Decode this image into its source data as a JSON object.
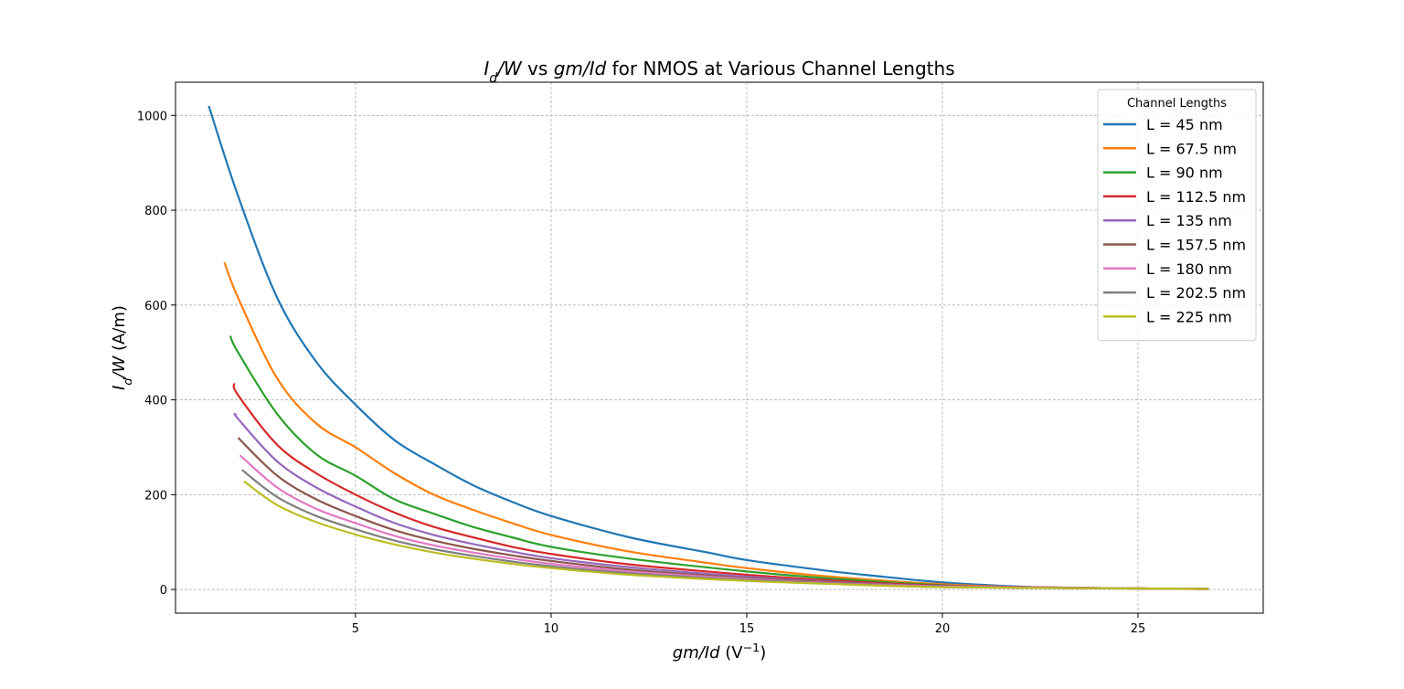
{
  "chart_data": {
    "type": "line",
    "title_parts": [
      {
        "text": "I",
        "italic": true
      },
      {
        "text": "d",
        "italic": true,
        "sub": true
      },
      {
        "text": "/W",
        "italic": true
      },
      {
        "text": " vs ",
        "italic": false
      },
      {
        "text": "gm/Id",
        "italic": true
      },
      {
        "text": " for NMOS at Various Channel Lengths",
        "italic": false
      }
    ],
    "xlabel_parts": [
      {
        "text": "gm/Id",
        "italic": true
      },
      {
        "text": " (V",
        "italic": false
      },
      {
        "text": "−1",
        "italic": false,
        "sup": true
      },
      {
        "text": ")",
        "italic": false
      }
    ],
    "ylabel_parts": [
      {
        "text": "I",
        "italic": true
      },
      {
        "text": "d",
        "italic": true,
        "sub": true
      },
      {
        "text": "/W",
        "italic": true
      },
      {
        "text": " (A/m)",
        "italic": false
      }
    ],
    "xlim": [
      0.4,
      28.2
    ],
    "ylim": [
      -50,
      1070
    ],
    "xticks": [
      5,
      10,
      15,
      20,
      25
    ],
    "xtick_labels": [
      "5",
      "10",
      "15",
      "20",
      "25"
    ],
    "yticks": [
      0,
      200,
      400,
      600,
      800,
      1000
    ],
    "ytick_labels": [
      "0",
      "200",
      "400",
      "600",
      "800",
      "1000"
    ],
    "grid": true,
    "legend_title": "Channel Lengths",
    "legend_position": "top-right",
    "series": [
      {
        "name": "L = 45 nm",
        "color": "#1f77b4",
        "points": [
          [
            1.25,
            1020
          ],
          [
            2,
            830
          ],
          [
            3,
            615
          ],
          [
            4,
            480
          ],
          [
            5,
            390
          ],
          [
            6,
            315
          ],
          [
            7,
            265
          ],
          [
            8,
            220
          ],
          [
            9,
            185
          ],
          [
            10,
            155
          ],
          [
            12,
            110
          ],
          [
            14,
            78
          ],
          [
            15,
            62
          ],
          [
            17,
            40
          ],
          [
            18,
            31
          ],
          [
            20,
            15
          ],
          [
            22,
            6
          ],
          [
            23,
            4
          ],
          [
            25,
            2
          ],
          [
            26.8,
            1
          ]
        ]
      },
      {
        "name": "L = 67.5 nm",
        "color": "#ff7f0e",
        "points": [
          [
            1.65,
            690
          ],
          [
            2,
            615
          ],
          [
            3,
            445
          ],
          [
            4,
            350
          ],
          [
            5,
            300
          ],
          [
            6,
            245
          ],
          [
            7,
            200
          ],
          [
            8,
            168
          ],
          [
            9,
            140
          ],
          [
            10,
            115
          ],
          [
            12,
            80
          ],
          [
            14,
            56
          ],
          [
            15,
            45
          ],
          [
            17,
            28
          ],
          [
            20,
            11
          ],
          [
            22,
            5
          ],
          [
            25,
            2
          ],
          [
            26.8,
            1
          ]
        ]
      },
      {
        "name": "L = 90 nm",
        "color": "#2ca02c",
        "points": [
          [
            1.8,
            535
          ],
          [
            2,
            500
          ],
          [
            3,
            370
          ],
          [
            4,
            285
          ],
          [
            5,
            240
          ],
          [
            6,
            190
          ],
          [
            7,
            160
          ],
          [
            8,
            132
          ],
          [
            9,
            110
          ],
          [
            10,
            90
          ],
          [
            12,
            65
          ],
          [
            15,
            38
          ],
          [
            17,
            24
          ],
          [
            20,
            9
          ],
          [
            22,
            4
          ],
          [
            25,
            2
          ],
          [
            26.8,
            1
          ]
        ]
      },
      {
        "name": "L = 112.5 nm",
        "color": "#d62728",
        "points": [
          [
            1.9,
            435
          ],
          [
            2,
            410
          ],
          [
            3,
            305
          ],
          [
            4,
            245
          ],
          [
            5,
            200
          ],
          [
            6,
            162
          ],
          [
            7,
            132
          ],
          [
            8,
            110
          ],
          [
            9,
            90
          ],
          [
            10,
            75
          ],
          [
            12,
            53
          ],
          [
            15,
            31
          ],
          [
            17,
            20
          ],
          [
            20,
            8
          ],
          [
            25,
            2
          ],
          [
            26.8,
            1
          ]
        ]
      },
      {
        "name": "L = 135 nm",
        "color": "#9467bd",
        "points": [
          [
            1.95,
            370
          ],
          [
            2,
            360
          ],
          [
            3,
            270
          ],
          [
            4,
            215
          ],
          [
            5,
            175
          ],
          [
            6,
            140
          ],
          [
            7,
            115
          ],
          [
            8,
            96
          ],
          [
            9,
            80
          ],
          [
            10,
            66
          ],
          [
            12,
            47
          ],
          [
            15,
            27
          ],
          [
            17,
            17
          ],
          [
            20,
            7
          ],
          [
            25,
            2
          ],
          [
            26.8,
            1
          ]
        ]
      },
      {
        "name": "L = 157.5 nm",
        "color": "#8c564b",
        "points": [
          [
            2,
            320
          ],
          [
            3,
            240
          ],
          [
            4,
            190
          ],
          [
            5,
            155
          ],
          [
            6,
            125
          ],
          [
            7,
            103
          ],
          [
            8,
            86
          ],
          [
            9,
            72
          ],
          [
            10,
            60
          ],
          [
            12,
            42
          ],
          [
            15,
            24
          ],
          [
            17,
            16
          ],
          [
            20,
            6
          ],
          [
            25,
            2
          ],
          [
            26.8,
            1
          ]
        ]
      },
      {
        "name": "L = 180 nm",
        "color": "#e377c2",
        "points": [
          [
            2.05,
            283
          ],
          [
            3,
            215
          ],
          [
            4,
            170
          ],
          [
            5,
            140
          ],
          [
            6,
            113
          ],
          [
            7,
            93
          ],
          [
            8,
            78
          ],
          [
            9,
            65
          ],
          [
            10,
            54
          ],
          [
            12,
            38
          ],
          [
            15,
            22
          ],
          [
            17,
            14
          ],
          [
            20,
            6
          ],
          [
            25,
            2
          ],
          [
            26.8,
            1
          ]
        ]
      },
      {
        "name": "L = 202.5 nm",
        "color": "#7f7f7f",
        "points": [
          [
            2.1,
            252
          ],
          [
            3,
            195
          ],
          [
            4,
            155
          ],
          [
            5,
            127
          ],
          [
            6,
            103
          ],
          [
            7,
            85
          ],
          [
            8,
            71
          ],
          [
            9,
            59
          ],
          [
            10,
            49
          ],
          [
            12,
            34
          ],
          [
            15,
            20
          ],
          [
            17,
            13
          ],
          [
            20,
            5
          ],
          [
            25,
            2
          ],
          [
            26.8,
            1
          ]
        ]
      },
      {
        "name": "L = 225 nm",
        "color": "#bcbd22",
        "points": [
          [
            2.15,
            228
          ],
          [
            3,
            178
          ],
          [
            4,
            142
          ],
          [
            5,
            116
          ],
          [
            6,
            95
          ],
          [
            7,
            78
          ],
          [
            8,
            65
          ],
          [
            9,
            54
          ],
          [
            10,
            45
          ],
          [
            12,
            31
          ],
          [
            15,
            18
          ],
          [
            17,
            12
          ],
          [
            20,
            5
          ],
          [
            25,
            2
          ],
          [
            26.8,
            1
          ]
        ]
      }
    ]
  }
}
